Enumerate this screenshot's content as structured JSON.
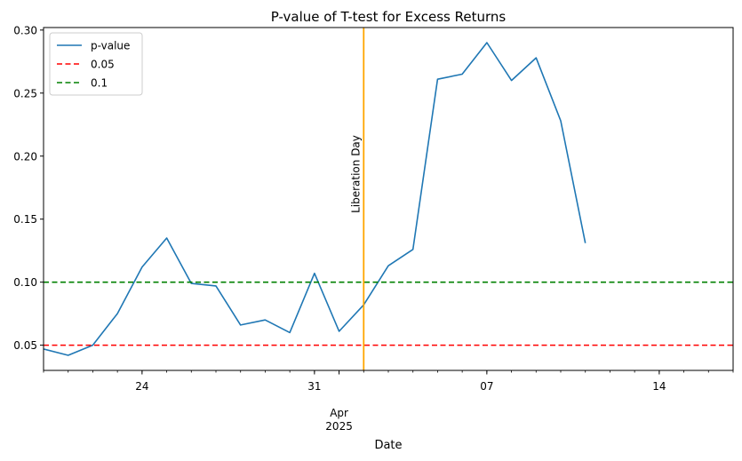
{
  "chart_data": {
    "type": "line",
    "title": "P-value of T-test for Excess Returns",
    "xlabel": "Date",
    "ylabel": "",
    "x_dates": [
      "2025-03-20",
      "2025-03-21",
      "2025-03-22",
      "2025-03-23",
      "2025-03-24",
      "2025-03-25",
      "2025-03-26",
      "2025-03-27",
      "2025-03-28",
      "2025-03-29",
      "2025-03-30",
      "2025-03-31",
      "2025-04-01",
      "2025-04-02",
      "2025-04-03",
      "2025-04-04",
      "2025-04-05",
      "2025-04-06",
      "2025-04-07",
      "2025-04-08",
      "2025-04-09",
      "2025-04-10",
      "2025-04-11",
      "2025-04-12",
      "2025-04-13",
      "2025-04-14",
      "2025-04-15",
      "2025-04-16",
      "2025-04-17"
    ],
    "xlim": [
      "2025-03-20",
      "2025-04-17"
    ],
    "ylim": [
      0.03,
      0.302
    ],
    "yticks": [
      0.05,
      0.1,
      0.15,
      0.2,
      0.25,
      0.3
    ],
    "ytick_labels": [
      "0.05",
      "0.10",
      "0.15",
      "0.20",
      "0.25",
      "0.30"
    ],
    "xticks_major": [
      {
        "date": "2025-03-24",
        "label": "24"
      },
      {
        "date": "2025-03-31",
        "label": "31"
      },
      {
        "date": "2025-04-07",
        "label": "07"
      },
      {
        "date": "2025-04-14",
        "label": "14"
      }
    ],
    "month_label": {
      "date": "2025-04-01",
      "line1": "Apr",
      "line2": "2025"
    },
    "series": [
      {
        "name": "p-value",
        "color": "#1f77b4",
        "style": "solid",
        "points": [
          [
            "2025-03-20",
            0.047
          ],
          [
            "2025-03-21",
            0.042
          ],
          [
            "2025-03-22",
            0.05
          ],
          [
            "2025-03-23",
            0.075
          ],
          [
            "2025-03-24",
            0.112
          ],
          [
            "2025-03-25",
            0.135
          ],
          [
            "2025-03-26",
            0.099
          ],
          [
            "2025-03-27",
            0.097
          ],
          [
            "2025-03-28",
            0.066
          ],
          [
            "2025-03-29",
            0.07
          ],
          [
            "2025-03-30",
            0.06
          ],
          [
            "2025-03-31",
            0.107
          ],
          [
            "2025-04-01",
            0.061
          ],
          [
            "2025-04-02",
            0.082
          ],
          [
            "2025-04-03",
            0.113
          ],
          [
            "2025-04-04",
            0.126
          ],
          [
            "2025-04-05",
            0.261
          ],
          [
            "2025-04-06",
            0.265
          ],
          [
            "2025-04-07",
            0.29
          ],
          [
            "2025-04-08",
            0.26
          ],
          [
            "2025-04-09",
            0.278
          ],
          [
            "2025-04-10",
            0.228
          ],
          [
            "2025-04-11",
            0.131
          ]
        ]
      },
      {
        "name": "0.05",
        "color": "#ff0000",
        "style": "dashed",
        "hline": 0.05
      },
      {
        "name": "0.1",
        "color": "#008000",
        "style": "dashed",
        "hline": 0.1
      }
    ],
    "vline": {
      "date": "2025-04-02",
      "color": "#ffa500",
      "label": "Liberation Day"
    },
    "legend": {
      "position": "top-left",
      "entries": [
        "p-value",
        "0.05",
        "0.1"
      ]
    },
    "grid": false
  }
}
